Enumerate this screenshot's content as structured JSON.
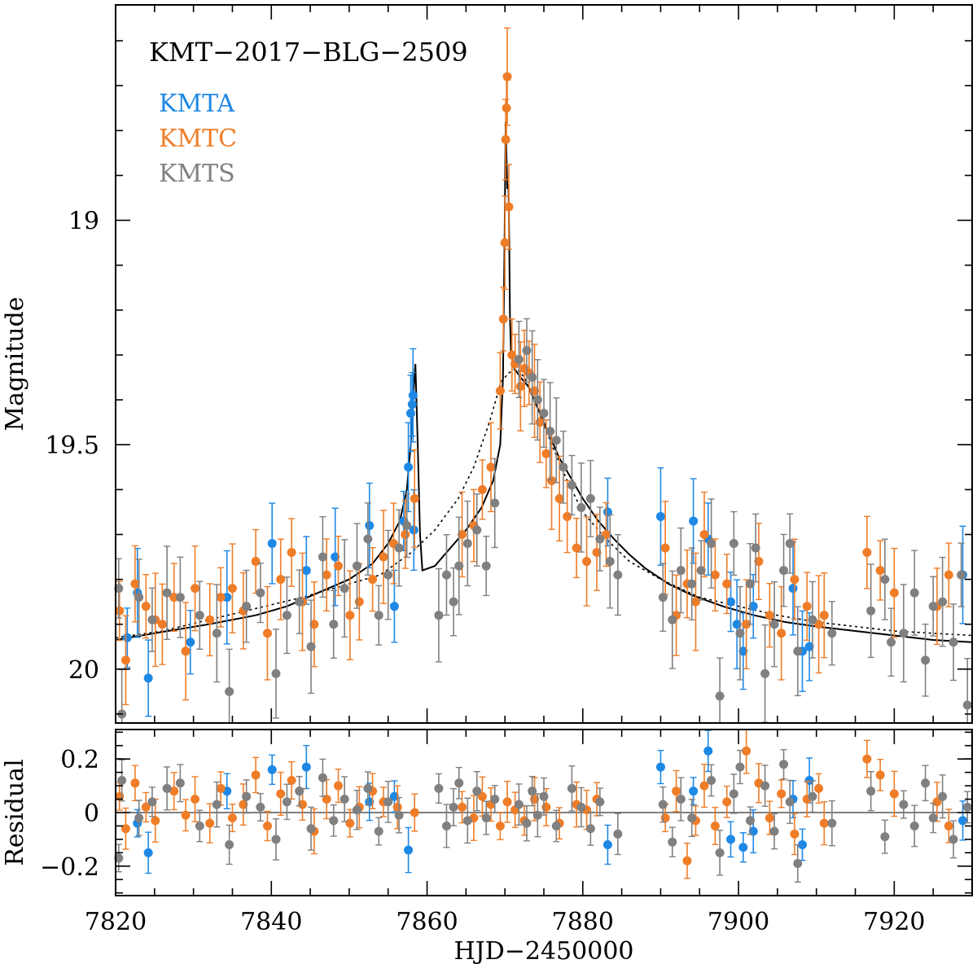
{
  "chart_data": [
    {
      "type": "scatter",
      "panel": "light-curve",
      "title": "KMT−2017−BLG−2509",
      "xlabel": "",
      "ylabel": "Magnitude",
      "xlim": [
        7820,
        7930
      ],
      "ylim": [
        20.12,
        18.52
      ],
      "y_inverted": true,
      "yticks": [
        {
          "value": 19.0,
          "label": "19"
        },
        {
          "value": 19.5,
          "label": "19.5"
        },
        {
          "value": 20.0,
          "label": "20"
        }
      ],
      "xticks": [
        7820,
        7840,
        7860,
        7880,
        7900,
        7920
      ],
      "legend": {
        "position": "top-left",
        "entries": [
          {
            "label": "KMTA",
            "color": "#1e88e5"
          },
          {
            "label": "KMTC",
            "color": "#ef7d28"
          },
          {
            "label": "KMTS",
            "color": "#808080"
          }
        ]
      },
      "series": [
        {
          "name": "KMTA",
          "color": "#1e88e5",
          "x": [
            7821.5,
            7822.8,
            7824.2,
            7829.6,
            7834.3,
            7840.1,
            7844.5,
            7848.2,
            7852.6,
            7855.8,
            7857.0,
            7857.6,
            7857.9,
            7858.1,
            7858.2,
            7858.3,
            7883.2,
            7890.0,
            7894.2,
            7896.1,
            7899.0,
            7899.8,
            7900.6,
            7901.9,
            7907.0,
            7908.2,
            7909.1,
            7928.8
          ],
          "y": [
            19.93,
            19.83,
            20.02,
            19.94,
            19.84,
            19.72,
            19.78,
            19.75,
            19.68,
            19.86,
            19.67,
            19.55,
            19.43,
            19.41,
            19.39,
            19.69,
            19.65,
            19.66,
            19.67,
            19.71,
            19.85,
            19.9,
            19.96,
            19.86,
            19.82,
            19.96,
            19.95,
            19.79
          ]
        },
        {
          "name": "KMTC",
          "color": "#ef7d28",
          "x": [
            7820.5,
            7821.3,
            7822.5,
            7823.9,
            7825.1,
            7826.0,
            7827.5,
            7829.0,
            7830.2,
            7832.1,
            7833.5,
            7835.0,
            7836.4,
            7838.0,
            7839.5,
            7841.2,
            7842.6,
            7844.0,
            7845.5,
            7847.1,
            7848.6,
            7850.1,
            7851.3,
            7853.0,
            7854.4,
            7855.7,
            7857.2,
            7858.4,
            7864.5,
            7866.0,
            7867.1,
            7868.2,
            7869.4,
            7869.8,
            7870.0,
            7870.1,
            7870.2,
            7870.3,
            7870.5,
            7870.9,
            7871.3,
            7872.0,
            7872.5,
            7873.1,
            7873.8,
            7874.5,
            7875.3,
            7876.0,
            7877.0,
            7878.0,
            7879.2,
            7880.5,
            7881.8,
            7883.0,
            7890.6,
            7892.0,
            7893.4,
            7894.5,
            7895.6,
            7897.0,
            7898.5,
            7901.0,
            7902.6,
            7904.0,
            7905.5,
            7907.2,
            7908.8,
            7910.3,
            7911.0,
            7916.5,
            7918.2,
            7920.0,
            7925.5,
            7927.0
          ],
          "y": [
            19.87,
            19.98,
            19.81,
            19.86,
            19.89,
            19.9,
            19.84,
            19.96,
            19.82,
            19.89,
            19.84,
            19.82,
            19.87,
            19.76,
            19.92,
            19.8,
            19.74,
            19.85,
            19.9,
            19.79,
            19.77,
            19.88,
            19.85,
            19.8,
            19.75,
            19.72,
            19.7,
            19.62,
            19.7,
            19.68,
            19.6,
            19.55,
            19.38,
            19.22,
            19.05,
            18.82,
            18.75,
            18.68,
            18.97,
            19.3,
            19.32,
            19.37,
            19.33,
            19.34,
            19.38,
            19.45,
            19.52,
            19.58,
            19.62,
            19.66,
            19.73,
            19.76,
            19.74,
            19.7,
            19.73,
            19.88,
            19.81,
            19.85,
            19.7,
            19.79,
            19.81,
            19.9,
            19.76,
            19.88,
            19.92,
            19.8,
            19.86,
            19.9,
            19.88,
            19.74,
            19.78,
            19.83,
            19.86,
            19.79
          ]
        },
        {
          "name": "KMTS",
          "color": "#808080",
          "x": [
            7820.4,
            7820.8,
            7823.0,
            7824.7,
            7826.6,
            7828.3,
            7830.8,
            7833.0,
            7834.6,
            7836.8,
            7838.6,
            7840.6,
            7842.0,
            7843.6,
            7845.1,
            7846.6,
            7848.0,
            7849.4,
            7851.0,
            7852.4,
            7853.8,
            7855.0,
            7856.4,
            7857.4,
            7861.5,
            7862.5,
            7863.4,
            7864.1,
            7865.2,
            7866.4,
            7867.6,
            7868.7,
            7871.8,
            7872.8,
            7873.5,
            7874.2,
            7875.0,
            7875.8,
            7876.6,
            7877.5,
            7878.6,
            7879.8,
            7881.0,
            7882.2,
            7883.5,
            7884.5,
            7890.3,
            7891.5,
            7892.6,
            7894.0,
            7895.2,
            7896.5,
            7897.6,
            7899.4,
            7900.2,
            7901.5,
            7902.2,
            7903.4,
            7904.6,
            7905.8,
            7906.6,
            7907.6,
            7909.5,
            7912.0,
            7917.0,
            7918.8,
            7919.6,
            7921.2,
            7922.6,
            7924.0,
            7925.0,
            7926.2,
            7927.6,
            7928.6,
            7929.4
          ],
          "y": [
            19.82,
            20.1,
            19.84,
            19.89,
            19.83,
            19.84,
            19.88,
            19.92,
            20.05,
            19.86,
            19.83,
            20.01,
            19.88,
            19.85,
            19.95,
            19.75,
            19.9,
            19.82,
            19.77,
            19.71,
            19.88,
            19.79,
            19.73,
            19.68,
            19.88,
            19.79,
            19.85,
            19.77,
            19.72,
            19.69,
            19.77,
            19.63,
            19.31,
            19.29,
            19.35,
            19.4,
            19.43,
            19.47,
            19.49,
            19.55,
            19.59,
            19.64,
            19.62,
            19.71,
            19.76,
            19.79,
            19.84,
            19.89,
            19.78,
            19.81,
            19.78,
            19.72,
            20.06,
            19.72,
            19.92,
            19.81,
            19.73,
            20.01,
            19.9,
            19.78,
            19.72,
            19.96,
            19.89,
            19.92,
            19.87,
            19.8,
            19.94,
            19.92,
            19.83,
            19.98,
            19.86,
            19.85,
            19.94,
            19.79,
            20.08
          ]
        }
      ],
      "models": [
        {
          "name": "solid model",
          "style": "solid",
          "x": [
            7820,
            7826,
            7832,
            7838,
            7842,
            7846,
            7850,
            7853,
            7855,
            7856.5,
            7857.4,
            7857.9,
            7858.2,
            7858.5,
            7858.8,
            7859.1,
            7859.4,
            7861,
            7863,
            7865,
            7867,
            7868.5,
            7869.4,
            7869.75,
            7869.95,
            7870.1,
            7870.2,
            7870.3,
            7870.45,
            7870.55,
            7870.65,
            7870.8,
            7871.2,
            7872,
            7873,
            7874,
            7875,
            7876,
            7877,
            7878,
            7879,
            7880,
            7882,
            7884,
            7886,
            7888,
            7891,
            7894,
            7898,
            7902,
            7906,
            7910,
            7915,
            7920,
            7925,
            7930
          ],
          "y": [
            19.935,
            19.917,
            19.9,
            19.88,
            19.86,
            19.83,
            19.8,
            19.765,
            19.72,
            19.67,
            19.6,
            19.5,
            19.4,
            19.32,
            19.5,
            19.7,
            19.78,
            19.77,
            19.73,
            19.69,
            19.64,
            19.58,
            19.5,
            19.35,
            19.05,
            18.78,
            18.86,
            18.93,
            18.92,
            19.04,
            19.22,
            19.3,
            19.33,
            19.35,
            19.37,
            19.41,
            19.45,
            19.49,
            19.53,
            19.56,
            19.59,
            19.62,
            19.67,
            19.71,
            19.745,
            19.775,
            19.81,
            19.835,
            19.86,
            19.88,
            19.895,
            19.905,
            19.915,
            19.925,
            19.935,
            19.94
          ]
        },
        {
          "name": "dotted model",
          "style": "dotted",
          "x": [
            7820,
            7826,
            7832,
            7838,
            7844,
            7850,
            7854,
            7858,
            7861,
            7864,
            7866,
            7868,
            7869.5,
            7870.5,
            7871.5,
            7872.5,
            7873.5,
            7874.5,
            7876,
            7878,
            7880,
            7883,
            7886,
            7890,
            7895,
            7900,
            7905,
            7910,
            7915,
            7920,
            7925,
            7930
          ],
          "y": [
            19.93,
            19.915,
            19.89,
            19.865,
            19.84,
            19.81,
            19.79,
            19.74,
            19.69,
            19.62,
            19.55,
            19.45,
            19.36,
            19.34,
            19.33,
            19.35,
            19.39,
            19.43,
            19.5,
            19.58,
            19.65,
            19.71,
            19.76,
            19.8,
            19.84,
            19.86,
            19.88,
            19.895,
            19.905,
            19.915,
            19.92,
            19.925
          ]
        }
      ]
    },
    {
      "type": "scatter",
      "panel": "residual",
      "title": "",
      "xlabel": "HJD−2450000",
      "ylabel": "Residual",
      "xlim": [
        7820,
        7930
      ],
      "ylim": [
        -0.31,
        0.31
      ],
      "yticks": [
        {
          "value": 0.2,
          "label": "0.2"
        },
        {
          "value": 0.0,
          "label": "0"
        },
        {
          "value": -0.2,
          "label": "−0.2"
        }
      ],
      "xticks": [
        {
          "value": 7820,
          "label": "7820"
        },
        {
          "value": 7840,
          "label": "7840"
        },
        {
          "value": 7860,
          "label": "7860"
        },
        {
          "value": 7880,
          "label": "7880"
        },
        {
          "value": 7900,
          "label": "7900"
        },
        {
          "value": 7920,
          "label": "7920"
        }
      ],
      "zero_line": 0,
      "series": [
        {
          "name": "KMTA",
          "color": "#1e88e5",
          "x": [
            7822.8,
            7824.2,
            7834.3,
            7840.1,
            7844.5,
            7852.6,
            7855.8,
            7857.6,
            7883.2,
            7890.0,
            7894.2,
            7896.1,
            7899.0,
            7900.6,
            7901.9,
            7907.0,
            7908.2,
            7909.1,
            7928.8
          ],
          "y": [
            -0.04,
            -0.15,
            0.08,
            0.16,
            0.17,
            0.04,
            0.06,
            -0.14,
            -0.12,
            0.17,
            0.08,
            0.23,
            -0.1,
            -0.13,
            -0.07,
            0.05,
            -0.12,
            0.12,
            -0.03
          ]
        },
        {
          "name": "KMTC",
          "color": "#ef7d28",
          "x": [
            7820.5,
            7821.3,
            7822.5,
            7823.9,
            7825.1,
            7827.5,
            7829.0,
            7830.2,
            7832.1,
            7833.5,
            7835.0,
            7836.4,
            7838.0,
            7839.5,
            7841.2,
            7842.6,
            7844.0,
            7845.5,
            7847.1,
            7848.6,
            7850.1,
            7851.3,
            7853.0,
            7854.4,
            7856.2,
            7858.4,
            7864.5,
            7866.0,
            7867.1,
            7868.2,
            7869.4,
            7870.3,
            7871.3,
            7872.5,
            7873.8,
            7875.3,
            7877.0,
            7879.2,
            7880.5,
            7881.8,
            7890.6,
            7892.0,
            7893.4,
            7894.5,
            7895.6,
            7897.0,
            7898.5,
            7901.0,
            7902.6,
            7904.0,
            7905.5,
            7907.2,
            7908.8,
            7910.3,
            7911.0,
            7916.5,
            7918.2,
            7920.0,
            7925.5,
            7927.0
          ],
          "y": [
            0.06,
            -0.06,
            0.11,
            0.02,
            -0.03,
            0.08,
            -0.01,
            0.05,
            -0.04,
            0.09,
            -0.02,
            0.03,
            0.14,
            -0.05,
            0.07,
            0.12,
            0.03,
            -0.07,
            0.05,
            0.1,
            -0.04,
            0.02,
            0.08,
            0.04,
            0.02,
            0.0,
            0.02,
            -0.02,
            0.06,
            0.03,
            -0.05,
            0.04,
            0.01,
            -0.03,
            0.05,
            0.02,
            -0.04,
            0.03,
            0.01,
            0.05,
            -0.02,
            0.08,
            -0.18,
            -0.03,
            0.1,
            -0.05,
            0.04,
            0.23,
            0.11,
            -0.02,
            0.07,
            -0.08,
            0.05,
            0.09,
            -0.04,
            0.2,
            0.14,
            0.07,
            0.04,
            -0.05
          ]
        },
        {
          "name": "KMTS",
          "color": "#808080",
          "x": [
            7820.4,
            7820.8,
            7823.0,
            7824.7,
            7826.6,
            7828.3,
            7830.8,
            7833.0,
            7834.6,
            7836.8,
            7838.6,
            7840.6,
            7842.0,
            7843.6,
            7845.1,
            7846.6,
            7848.0,
            7849.4,
            7851.0,
            7852.4,
            7853.8,
            7855.0,
            7856.4,
            7861.5,
            7862.5,
            7863.4,
            7864.1,
            7865.2,
            7866.4,
            7867.6,
            7868.7,
            7871.8,
            7872.8,
            7873.5,
            7874.2,
            7875.0,
            7876.6,
            7878.6,
            7879.8,
            7881.0,
            7882.2,
            7884.5,
            7890.3,
            7891.5,
            7892.6,
            7894.0,
            7896.5,
            7897.6,
            7899.4,
            7900.2,
            7901.5,
            7903.4,
            7904.6,
            7905.8,
            7906.6,
            7907.6,
            7909.5,
            7912.0,
            7917.0,
            7918.8,
            7921.2,
            7922.6,
            7924.0,
            7925.0,
            7926.2,
            7927.6,
            7929.4
          ],
          "y": [
            -0.17,
            0.12,
            -0.02,
            0.04,
            0.09,
            0.11,
            -0.05,
            0.03,
            -0.12,
            0.06,
            0.02,
            -0.1,
            0.04,
            0.08,
            -0.06,
            0.13,
            -0.03,
            0.05,
            0.01,
            0.09,
            -0.07,
            0.04,
            -0.01,
            0.09,
            -0.05,
            0.02,
            0.11,
            -0.03,
            0.08,
            -0.02,
            0.05,
            0.03,
            -0.04,
            0.08,
            -0.01,
            0.06,
            -0.05,
            0.09,
            0.02,
            -0.06,
            0.04,
            -0.08,
            0.03,
            -0.11,
            0.05,
            -0.02,
            0.12,
            -0.15,
            0.07,
            0.17,
            -0.03,
            0.1,
            -0.07,
            0.18,
            0.04,
            -0.19,
            0.06,
            -0.04,
            0.08,
            -0.09,
            0.03,
            -0.05,
            0.11,
            -0.02,
            0.06,
            -0.1,
            0.02
          ]
        }
      ]
    }
  ]
}
